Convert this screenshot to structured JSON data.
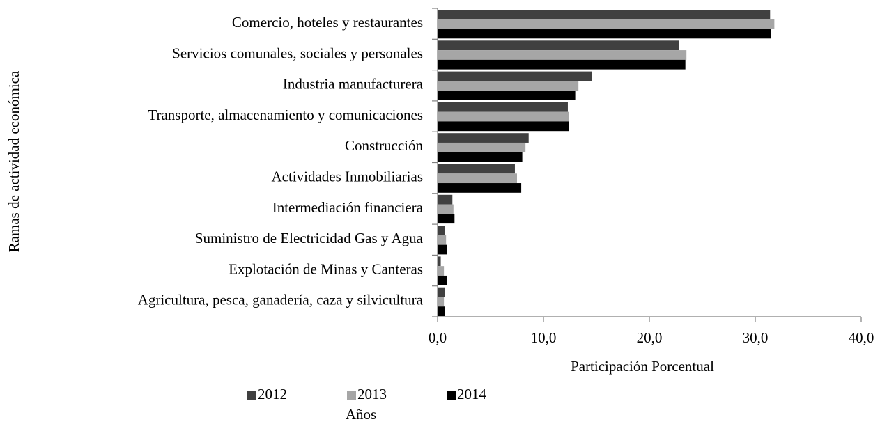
{
  "chart_data": {
    "type": "barh",
    "categories": [
      "Comercio, hoteles y restaurantes",
      "Servicios comunales, sociales y personales",
      "Industria manufacturera",
      "Transporte, almacenamiento y comunicaciones",
      "Construcción",
      "Actividades Inmobiliarias",
      "Intermediación financiera",
      "Suministro de Electricidad Gas y Agua",
      "Explotación de Minas y Canteras",
      "Agricultura, pesca, ganadería, caza y silvicultura"
    ],
    "series": [
      {
        "name": "2012",
        "color": "#404040",
        "values": [
          31.4,
          22.8,
          14.6,
          12.3,
          8.6,
          7.3,
          1.4,
          0.7,
          0.3,
          0.7
        ]
      },
      {
        "name": "2013",
        "color": "#a6a6a6",
        "values": [
          31.8,
          23.5,
          13.3,
          12.4,
          8.3,
          7.5,
          1.5,
          0.8,
          0.6,
          0.6
        ]
      },
      {
        "name": "2014",
        "color": "#000000",
        "values": [
          31.5,
          23.4,
          13.0,
          12.4,
          8.0,
          7.9,
          1.6,
          0.9,
          0.9,
          0.7
        ]
      }
    ],
    "xlim": [
      0,
      40
    ],
    "xticks": [
      {
        "value": 0,
        "label": "0,0"
      },
      {
        "value": 10,
        "label": "10,0"
      },
      {
        "value": 20,
        "label": "20,0"
      },
      {
        "value": 30,
        "label": "30,0"
      },
      {
        "value": 40,
        "label": "40,0"
      }
    ],
    "x_label": "Participación Porcentual",
    "y_label": "Ramas de actividad económica",
    "legend_title": "Años",
    "legend": "bottom"
  }
}
